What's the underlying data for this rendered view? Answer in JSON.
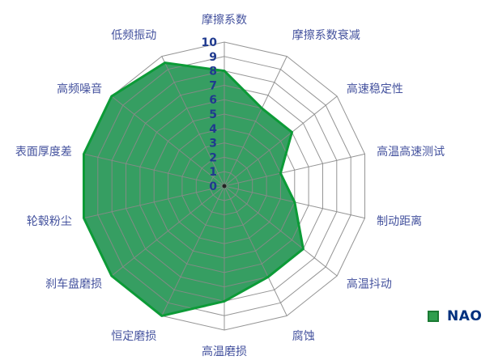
{
  "chart_data": {
    "type": "radar",
    "categories": [
      "摩擦系数",
      "摩擦系数衰减",
      "高速稳定性",
      "高温高速测试",
      "制动距离",
      "高温抖动",
      "腐蚀",
      "高温磨损",
      "恒定磨损",
      "刹车盘磨损",
      "轮毂粉尘",
      "表面厚度差",
      "高频噪音",
      "低频振动"
    ],
    "series": [
      {
        "name": "NAO",
        "values": [
          8,
          6,
          6,
          4,
          5,
          7,
          7,
          8,
          10,
          10,
          10,
          10,
          10,
          9.5
        ]
      }
    ],
    "scale": {
      "min": 0,
      "max": 10,
      "step": 1,
      "tick_labels": [
        "10",
        "9",
        "8",
        "7",
        "6",
        "5",
        "4",
        "3",
        "2",
        "1",
        "0"
      ]
    },
    "grid": {
      "shape": "polygon-web",
      "rings": 10,
      "visible": true
    },
    "legend": {
      "position": "bottom-right",
      "items": [
        {
          "label": "NAO",
          "swatch_color": "#2f9e4e",
          "swatch_border": "#1a7a33"
        }
      ]
    },
    "colors": {
      "series_fill": "#369e62",
      "series_line": "#0c9b37",
      "grid_line": "#8a8a8a",
      "tick_text": "#1f3a8f",
      "category_text": "#44529e",
      "legend_text": "#00307e",
      "background": "#ffffff"
    },
    "title": "",
    "xlabel": "",
    "ylabel": ""
  }
}
